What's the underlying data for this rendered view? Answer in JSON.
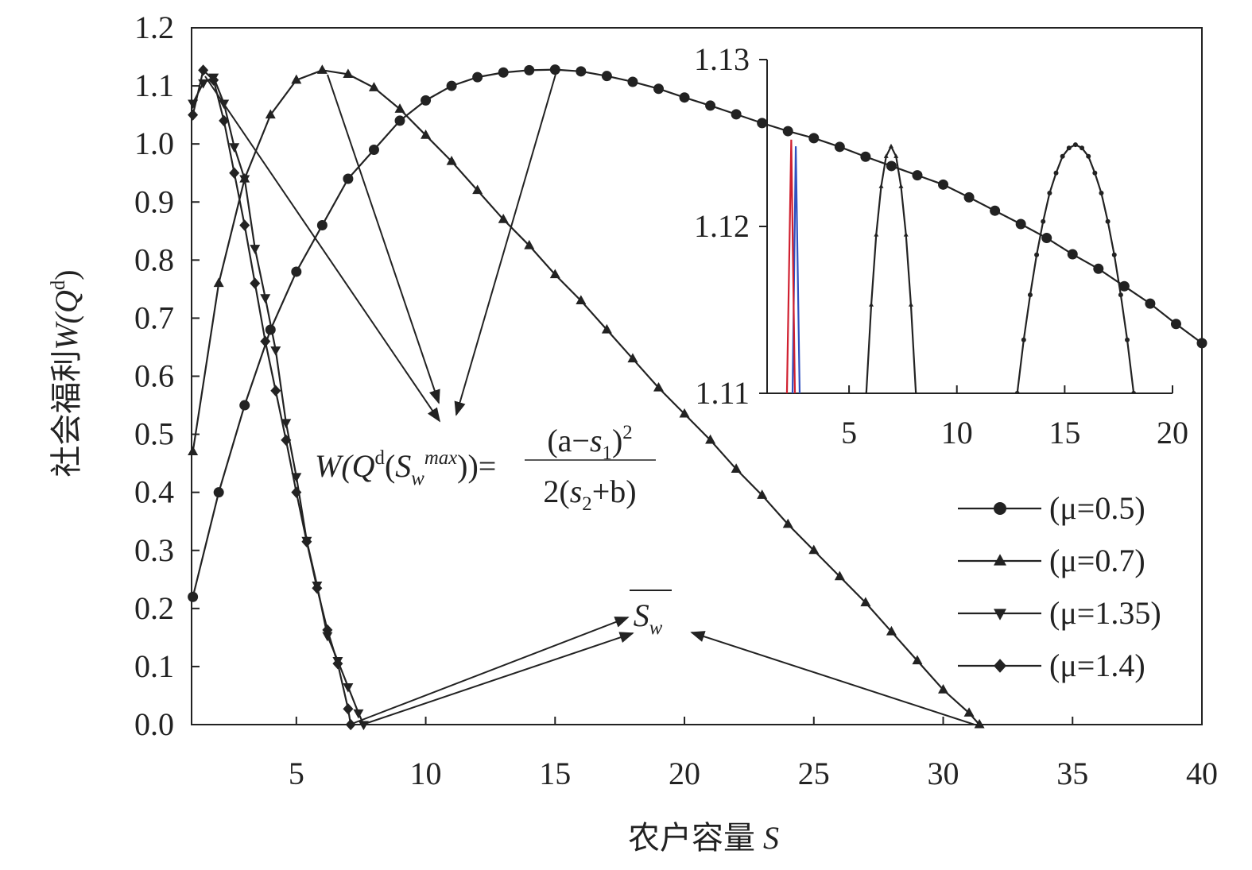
{
  "chart_data": [
    {
      "type": "line",
      "ylabel": [
        {
          "text": "社会福利"
        },
        {
          "text": "W(Q",
          "style": "italic"
        },
        {
          "text": "d",
          "style": "sup"
        },
        {
          "text": ")"
        }
      ],
      "xlabel": [
        {
          "text": "农户容量 "
        },
        {
          "text": "S",
          "style": "italic"
        }
      ],
      "xlim": [
        0.95,
        40
      ],
      "xticks": [
        5,
        10,
        15,
        20,
        25,
        30,
        35,
        40
      ],
      "ylim": [
        0,
        1.2
      ],
      "yticks": [
        {
          "value": 0,
          "label": "0.0"
        },
        0.1,
        0.2,
        0.3,
        0.4,
        0.5,
        0.6,
        0.7,
        0.8,
        0.9,
        {
          "value": 1,
          "label": "1.0"
        },
        1.1,
        1.2
      ],
      "legend": "right",
      "series": [
        {
          "name": "(μ=0.5)",
          "color": "#222222",
          "marker": "circle",
          "x": [
            1,
            2,
            3,
            4,
            5,
            6,
            7,
            8,
            9,
            10,
            11,
            12,
            13,
            14,
            15,
            16,
            17,
            18,
            19,
            20,
            21,
            22,
            23,
            24,
            25,
            26,
            27,
            28,
            29,
            30,
            31,
            32,
            33,
            34,
            35,
            36,
            37,
            38,
            39,
            40
          ],
          "values": [
            0.22,
            0.4,
            0.55,
            0.68,
            0.78,
            0.86,
            0.94,
            0.99,
            1.04,
            1.075,
            1.1,
            1.115,
            1.123,
            1.127,
            1.128,
            1.125,
            1.117,
            1.107,
            1.095,
            1.08,
            1.066,
            1.051,
            1.036,
            1.022,
            1.01,
            0.995,
            0.978,
            0.962,
            0.946,
            0.93,
            0.908,
            0.885,
            0.862,
            0.838,
            0.81,
            0.785,
            0.755,
            0.725,
            0.69,
            0.657
          ]
        },
        {
          "name": "(μ=0.7)",
          "color": "#222222",
          "marker": "triangle",
          "x": [
            1,
            2,
            3,
            4,
            5,
            6,
            7,
            8,
            9,
            10,
            11,
            12,
            13,
            14,
            15,
            16,
            17,
            18,
            19,
            20,
            21,
            22,
            23,
            24,
            25,
            26,
            27,
            28,
            29,
            30,
            31,
            31.4
          ],
          "values": [
            0.47,
            0.76,
            0.94,
            1.05,
            1.11,
            1.127,
            1.12,
            1.097,
            1.06,
            1.015,
            0.97,
            0.92,
            0.87,
            0.825,
            0.775,
            0.73,
            0.68,
            0.63,
            0.58,
            0.535,
            0.49,
            0.44,
            0.395,
            0.345,
            0.3,
            0.255,
            0.21,
            0.16,
            0.11,
            0.06,
            0.02,
            0
          ]
        },
        {
          "name": "(μ=1.35)",
          "color": "#222222",
          "marker": "triangle-down",
          "x": [
            1,
            1.4,
            1.8,
            2.2,
            2.6,
            3,
            3.4,
            3.8,
            4.2,
            4.6,
            5,
            5.4,
            5.8,
            6.2,
            6.6,
            7,
            7.4,
            7.6
          ],
          "values": [
            1.07,
            1.105,
            1.115,
            1.07,
            0.995,
            0.94,
            0.82,
            0.735,
            0.645,
            0.52,
            0.427,
            0.317,
            0.24,
            0.153,
            0.11,
            0.065,
            0.02,
            0
          ]
        },
        {
          "name": "(μ=1.4)",
          "color": "#222222",
          "marker": "diamond",
          "x": [
            1,
            1.4,
            1.8,
            2.2,
            2.6,
            3,
            3.4,
            3.8,
            4.2,
            4.6,
            5,
            5.4,
            5.8,
            6.2,
            6.6,
            7,
            7.1
          ],
          "values": [
            1.05,
            1.127,
            1.11,
            1.04,
            0.95,
            0.86,
            0.76,
            0.66,
            0.575,
            0.49,
            0.4,
            0.315,
            0.235,
            0.163,
            0.105,
            0.027,
            0
          ]
        }
      ],
      "formula": {
        "left": [
          {
            "text": "W(Q",
            "style": "italic"
          },
          {
            "text": "d",
            "style": "sup"
          },
          {
            "text": "("
          },
          {
            "text": "S",
            "style": "italic"
          },
          {
            "text": "w",
            "style": "italic sub"
          },
          {
            "text": "max",
            "style": "italic sup"
          },
          {
            "text": "))="
          }
        ],
        "numerator": [
          {
            "text": "(a−"
          },
          {
            "text": "s",
            "style": "italic"
          },
          {
            "text": "1",
            "style": "sub"
          },
          {
            "text": ")"
          },
          {
            "text": "2",
            "style": "sup"
          }
        ],
        "denominator": [
          {
            "text": "2("
          },
          {
            "text": "s",
            "style": "italic"
          },
          {
            "text": "2",
            "style": "sub"
          },
          {
            "text": "+b)"
          }
        ]
      },
      "annotation": [
        {
          "text": "S",
          "style": "italic"
        },
        {
          "text": "w",
          "style": "italic sub"
        }
      ]
    },
    {
      "type": "line",
      "xlim": [
        1.2,
        20
      ],
      "xticks": [
        5,
        10,
        15,
        20
      ],
      "ylim": [
        1.11,
        1.13
      ],
      "yticks": [
        1.11,
        1.12,
        1.13
      ],
      "series": [
        {
          "color": "#222222",
          "marker": "circle",
          "x": [
            12.8,
            13.1,
            13.4,
            13.7,
            14.0,
            14.3,
            14.6,
            14.9,
            15.2,
            15.5,
            15.8,
            16.1,
            16.4,
            16.7,
            17.0,
            17.3,
            17.6,
            17.9,
            18.2
          ],
          "values": [
            1.11,
            1.1132,
            1.1159,
            1.1183,
            1.1203,
            1.122,
            1.1232,
            1.1242,
            1.1247,
            1.1249,
            1.1247,
            1.1242,
            1.1232,
            1.122,
            1.1203,
            1.1183,
            1.1159,
            1.1132,
            1.11
          ]
        },
        {
          "color": "#222222",
          "marker": "triangle",
          "x": [
            5.8,
            6.03,
            6.26,
            6.49,
            6.72,
            6.95,
            7.18,
            7.41,
            7.64,
            7.87,
            8.1
          ],
          "values": [
            1.11,
            1.1153,
            1.1195,
            1.1224,
            1.1242,
            1.1248,
            1.1242,
            1.1224,
            1.1195,
            1.1153,
            1.11
          ]
        },
        {
          "color": "#3050c0",
          "x": [
            2.38,
            2.53,
            2.71
          ],
          "values": [
            1.11,
            1.1248,
            1.11
          ]
        },
        {
          "color": "#d02030",
          "x": [
            2.12,
            2.32,
            2.49
          ],
          "values": [
            1.11,
            1.1252,
            1.11
          ]
        }
      ]
    }
  ]
}
